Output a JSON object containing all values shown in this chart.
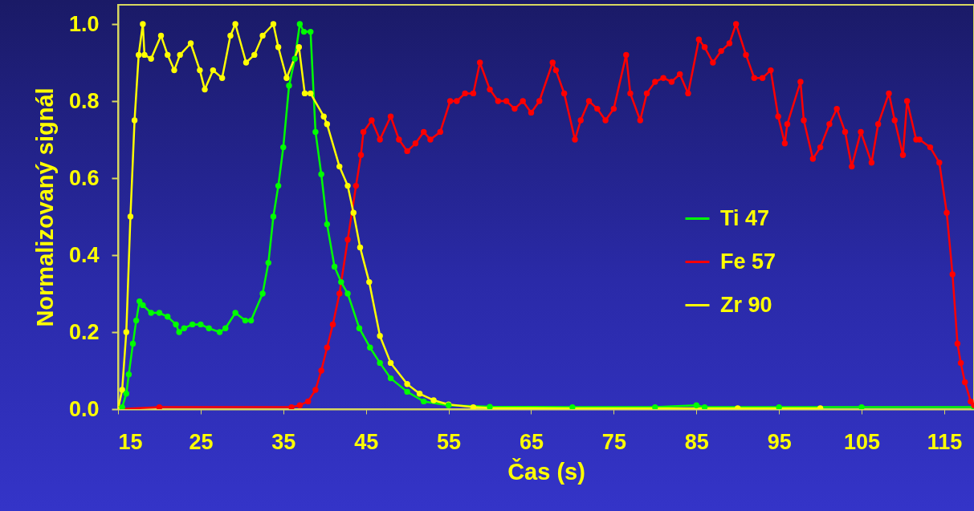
{
  "chart_data": {
    "type": "line",
    "xlabel": "Čas (s)",
    "ylabel": "Normalizovaný signál",
    "xlim": [
      15,
      118.6
    ],
    "ylim": [
      0,
      1.05
    ],
    "xticks": [
      15,
      25,
      35,
      45,
      55,
      65,
      75,
      85,
      95,
      105,
      115
    ],
    "yticks": [
      {
        "value": 0,
        "label": "0.0"
      },
      {
        "value": 0.2,
        "label": "0.2"
      },
      {
        "value": 0.4,
        "label": "0.4"
      },
      {
        "value": 0.6,
        "label": "0.6"
      },
      {
        "value": 0.8,
        "label": "0.8"
      },
      {
        "value": 1,
        "label": "1.0"
      }
    ],
    "grid": false,
    "legend": "right",
    "marker": "circle",
    "line_style": "solid",
    "series": [
      {
        "name": "Ti 47",
        "color": "#00ff00",
        "x": [
          15,
          15.5,
          16,
          16.3,
          16.8,
          17.2,
          17.6,
          18,
          19,
          20,
          21,
          22,
          22.4,
          23,
          24,
          25,
          26,
          27.3,
          28,
          29.2,
          30.4,
          31.1,
          32.5,
          33.2,
          33.8,
          34.4,
          35,
          35.7,
          36.4,
          37,
          37.5,
          38.3,
          38.9,
          39.6,
          40.3,
          41.2,
          42,
          42.8,
          44.2,
          45.5,
          46.7,
          48,
          50,
          52,
          55,
          60,
          70,
          80,
          85,
          86,
          95,
          105,
          118.6
        ],
        "values": [
          0,
          0.005,
          0.04,
          0.09,
          0.17,
          0.23,
          0.28,
          0.27,
          0.25,
          0.25,
          0.24,
          0.22,
          0.2,
          0.21,
          0.22,
          0.22,
          0.21,
          0.2,
          0.21,
          0.25,
          0.23,
          0.23,
          0.3,
          0.38,
          0.5,
          0.58,
          0.68,
          0.84,
          0.91,
          1.0,
          0.98,
          0.98,
          0.72,
          0.61,
          0.48,
          0.37,
          0.33,
          0.3,
          0.21,
          0.16,
          0.12,
          0.08,
          0.045,
          0.02,
          0.01,
          0.006,
          0.005,
          0.005,
          0.01,
          0.005,
          0.005,
          0.005,
          0.005
        ]
      },
      {
        "name": "Fe 57",
        "color": "#ff0000",
        "x": [
          15,
          20,
          36,
          37,
          38,
          38.9,
          39.6,
          40.3,
          41,
          41.8,
          42.8,
          43.8,
          44.4,
          44.7,
          45.7,
          46.7,
          48,
          49,
          50,
          51,
          52,
          52.8,
          54,
          55.2,
          56,
          57,
          58,
          58.8,
          60,
          61,
          62,
          63,
          64,
          65,
          66,
          67.6,
          68,
          69,
          70.3,
          71,
          72,
          73,
          74,
          75,
          76.5,
          77,
          78.2,
          79,
          80,
          81,
          82,
          83,
          84,
          85.3,
          86,
          87,
          88,
          89,
          89.8,
          91,
          92,
          93,
          94,
          94.9,
          95.7,
          96,
          97.6,
          98,
          99.1,
          100,
          101.1,
          102,
          103,
          103.8,
          104.9,
          106.2,
          107,
          108.3,
          109,
          110,
          110.5,
          111.6,
          112,
          113.3,
          114.4,
          115.3,
          116,
          116.6,
          117,
          117.5,
          118.2,
          118.6
        ],
        "values": [
          0,
          0.005,
          0.005,
          0.01,
          0.02,
          0.05,
          0.1,
          0.16,
          0.22,
          0.3,
          0.44,
          0.58,
          0.66,
          0.72,
          0.75,
          0.7,
          0.76,
          0.7,
          0.67,
          0.69,
          0.72,
          0.7,
          0.72,
          0.8,
          0.8,
          0.82,
          0.82,
          0.9,
          0.83,
          0.8,
          0.8,
          0.78,
          0.8,
          0.77,
          0.8,
          0.9,
          0.88,
          0.82,
          0.7,
          0.75,
          0.8,
          0.78,
          0.75,
          0.78,
          0.92,
          0.82,
          0.75,
          0.82,
          0.85,
          0.86,
          0.85,
          0.87,
          0.82,
          0.96,
          0.94,
          0.9,
          0.93,
          0.95,
          1.0,
          0.92,
          0.86,
          0.86,
          0.88,
          0.76,
          0.69,
          0.74,
          0.85,
          0.75,
          0.65,
          0.68,
          0.74,
          0.78,
          0.72,
          0.63,
          0.72,
          0.64,
          0.74,
          0.82,
          0.75,
          0.66,
          0.8,
          0.7,
          0.7,
          0.68,
          0.64,
          0.51,
          0.35,
          0.17,
          0.12,
          0.07,
          0.02,
          0.01
        ]
      },
      {
        "name": "Zr 90",
        "color": "#ffff00",
        "x": [
          15,
          15.5,
          16,
          16.5,
          17,
          17.5,
          18,
          18.2,
          19,
          20.2,
          21,
          21.8,
          22.5,
          23.8,
          24.9,
          25.5,
          26.5,
          27.6,
          28.6,
          29.2,
          30.5,
          31.5,
          32.5,
          33.8,
          34.4,
          35.4,
          36.9,
          37.6,
          38.3,
          39.9,
          40.3,
          41.8,
          42.8,
          43.5,
          44.3,
          45.4,
          46.7,
          48,
          50,
          51.5,
          53.2,
          55,
          58,
          60,
          70,
          80,
          90,
          100
        ],
        "values": [
          0,
          0.05,
          0.2,
          0.5,
          0.75,
          0.92,
          1.0,
          0.92,
          0.91,
          0.97,
          0.92,
          0.88,
          0.92,
          0.95,
          0.88,
          0.83,
          0.88,
          0.86,
          0.97,
          1.0,
          0.9,
          0.92,
          0.97,
          1.0,
          0.94,
          0.86,
          0.94,
          0.82,
          0.82,
          0.76,
          0.74,
          0.63,
          0.58,
          0.51,
          0.42,
          0.33,
          0.19,
          0.12,
          0.065,
          0.04,
          0.023,
          0.012,
          0.005,
          0.003,
          0.002,
          0.002,
          0.002,
          0.002
        ]
      }
    ]
  }
}
